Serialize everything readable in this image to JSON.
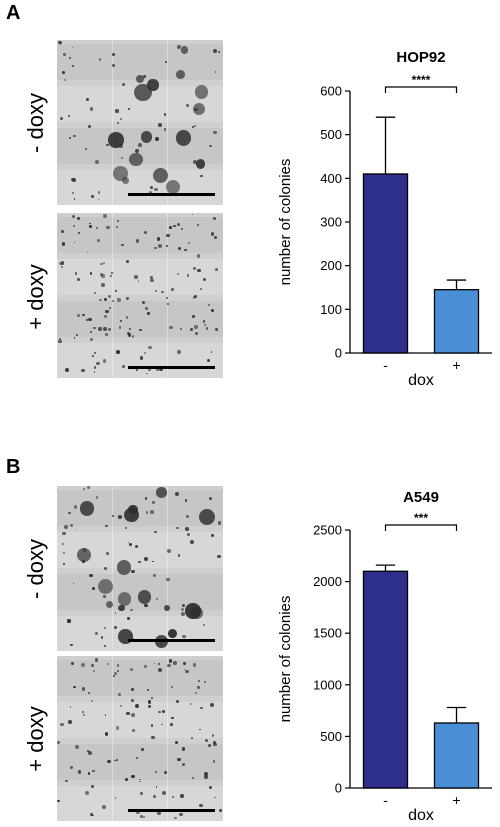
{
  "panels": [
    {
      "letter": "A",
      "label_top": "- doxy",
      "label_bottom": "+ doxy"
    },
    {
      "letter": "B",
      "label_top": "- doxy",
      "label_bottom": "+ doxy"
    }
  ],
  "chart_data": [
    {
      "type": "bar",
      "title": "HOP92",
      "xlabel": "dox",
      "ylabel": "number of colonies",
      "categories": [
        "-",
        "+"
      ],
      "values": [
        410,
        145
      ],
      "errors": [
        130,
        22
      ],
      "ylim": [
        0,
        600
      ],
      "yticks": [
        0,
        100,
        200,
        300,
        400,
        500,
        600
      ],
      "significance": "****",
      "colors": [
        "#2e2e8c",
        "#4a8fd6"
      ]
    },
    {
      "type": "bar",
      "title": "A549",
      "xlabel": "dox",
      "ylabel": "number of colonies",
      "categories": [
        "-",
        "+"
      ],
      "values": [
        2100,
        630
      ],
      "errors": [
        60,
        150
      ],
      "ylim": [
        0,
        2500
      ],
      "yticks": [
        0,
        500,
        1000,
        1500,
        2000,
        2500
      ],
      "significance": "***",
      "colors": [
        "#2e2e8c",
        "#4a8fd6"
      ]
    }
  ]
}
